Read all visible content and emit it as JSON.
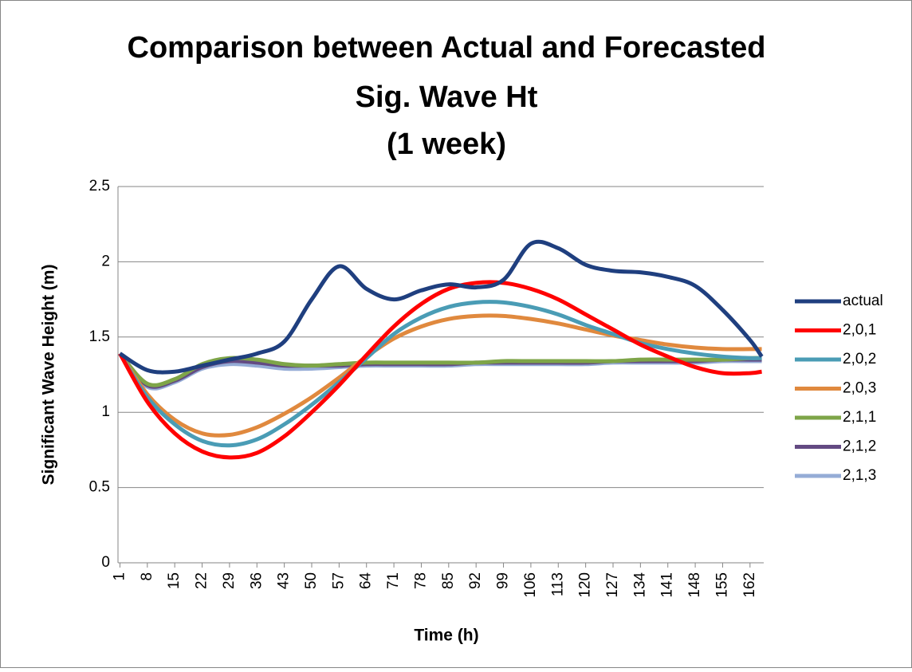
{
  "chart_data": {
    "type": "line",
    "title": [
      "Comparison between Actual and Forecasted",
      "Sig. Wave Ht",
      "(1 week)"
    ],
    "xlabel": "Time (h)",
    "ylabel": "Significant Wave Height (m)",
    "x": [
      1,
      8,
      15,
      22,
      29,
      36,
      43,
      50,
      57,
      64,
      71,
      78,
      85,
      92,
      99,
      106,
      113,
      120,
      127,
      134,
      141,
      148,
      155,
      162,
      165
    ],
    "xlim": [
      0.5,
      165.5
    ],
    "xticks": [
      1,
      8,
      15,
      22,
      29,
      36,
      43,
      50,
      57,
      64,
      71,
      78,
      85,
      92,
      99,
      106,
      113,
      120,
      127,
      134,
      141,
      148,
      155,
      162
    ],
    "ylim": [
      0,
      2.5
    ],
    "yticks": [
      0,
      0.5,
      1,
      1.5,
      2,
      2.5
    ],
    "grid": true,
    "legend": "right",
    "series": [
      {
        "name": "actual",
        "color": "#1f3f7f",
        "values": [
          1.39,
          1.28,
          1.27,
          1.31,
          1.35,
          1.39,
          1.47,
          1.75,
          1.97,
          1.82,
          1.75,
          1.81,
          1.85,
          1.83,
          1.88,
          2.12,
          2.09,
          1.98,
          1.94,
          1.93,
          1.9,
          1.84,
          1.68,
          1.48,
          1.37
        ]
      },
      {
        "name": "2,0,1",
        "color": "#ff0000",
        "values": [
          1.39,
          1.07,
          0.86,
          0.74,
          0.7,
          0.73,
          0.84,
          1.0,
          1.18,
          1.38,
          1.57,
          1.72,
          1.82,
          1.86,
          1.86,
          1.82,
          1.75,
          1.65,
          1.55,
          1.45,
          1.37,
          1.3,
          1.26,
          1.26,
          1.27
        ]
      },
      {
        "name": "2,0,2",
        "color": "#4a9cb5",
        "values": [
          1.39,
          1.1,
          0.92,
          0.81,
          0.78,
          0.82,
          0.92,
          1.05,
          1.2,
          1.36,
          1.52,
          1.63,
          1.7,
          1.73,
          1.73,
          1.7,
          1.65,
          1.58,
          1.52,
          1.46,
          1.42,
          1.39,
          1.37,
          1.36,
          1.36
        ]
      },
      {
        "name": "2,0,3",
        "color": "#e0893e",
        "values": [
          1.39,
          1.12,
          0.95,
          0.86,
          0.85,
          0.9,
          0.99,
          1.1,
          1.23,
          1.37,
          1.49,
          1.57,
          1.62,
          1.64,
          1.64,
          1.62,
          1.59,
          1.55,
          1.51,
          1.48,
          1.45,
          1.43,
          1.42,
          1.42,
          1.42
        ]
      },
      {
        "name": "2,1,1",
        "color": "#7ea548",
        "values": [
          1.39,
          1.19,
          1.22,
          1.32,
          1.36,
          1.35,
          1.32,
          1.31,
          1.32,
          1.33,
          1.33,
          1.33,
          1.33,
          1.33,
          1.34,
          1.34,
          1.34,
          1.34,
          1.34,
          1.35,
          1.35,
          1.35,
          1.35,
          1.36,
          1.36
        ]
      },
      {
        "name": "2,1,2",
        "color": "#634a82",
        "values": [
          1.39,
          1.18,
          1.21,
          1.3,
          1.34,
          1.33,
          1.31,
          1.31,
          1.31,
          1.32,
          1.32,
          1.32,
          1.32,
          1.33,
          1.33,
          1.33,
          1.33,
          1.33,
          1.34,
          1.34,
          1.34,
          1.34,
          1.35,
          1.35,
          1.35
        ]
      },
      {
        "name": "2,1,3",
        "color": "#95acd6",
        "values": [
          1.39,
          1.17,
          1.2,
          1.29,
          1.32,
          1.31,
          1.29,
          1.29,
          1.3,
          1.31,
          1.31,
          1.31,
          1.31,
          1.32,
          1.32,
          1.32,
          1.32,
          1.32,
          1.33,
          1.33,
          1.33,
          1.33,
          1.34,
          1.34,
          1.34
        ]
      }
    ]
  }
}
